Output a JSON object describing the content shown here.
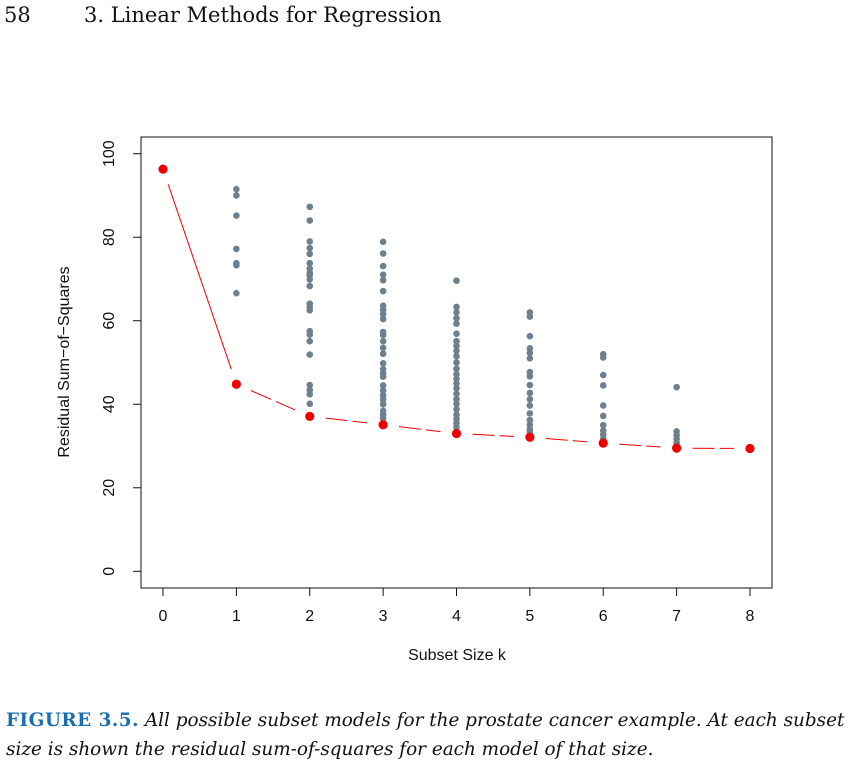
{
  "header": {
    "page_number": "58",
    "chapter_title": "3.  Linear Methods for Regression"
  },
  "chart_data": {
    "type": "scatter",
    "xlabel": "Subset Size k",
    "ylabel": "Residual Sum−of−Squares",
    "xlim": [
      -0.3,
      8.3
    ],
    "ylim": [
      -4,
      104
    ],
    "xticks": [
      "0",
      "1",
      "2",
      "3",
      "4",
      "5",
      "6",
      "7",
      "8"
    ],
    "yticks": [
      "0",
      "20",
      "40",
      "60",
      "80",
      "100"
    ],
    "grid": false,
    "colors": {
      "all_models": "#6e7f8d",
      "best_subset": "#ee0000",
      "curve": "#ee0000"
    },
    "series": [
      {
        "points": [
          [
            1,
            91.5
          ],
          [
            1,
            90.0
          ],
          [
            1,
            85.2
          ],
          [
            1,
            77.2
          ],
          [
            1,
            73.8
          ],
          [
            1,
            73.3
          ],
          [
            1,
            66.6
          ],
          [
            2,
            87.3
          ],
          [
            2,
            84.0
          ],
          [
            2,
            79.0
          ],
          [
            2,
            77.4
          ],
          [
            2,
            76.0
          ],
          [
            2,
            73.8
          ],
          [
            2,
            72.5
          ],
          [
            2,
            71.5
          ],
          [
            2,
            70.9
          ],
          [
            2,
            69.9
          ],
          [
            2,
            68.3
          ],
          [
            2,
            64.1
          ],
          [
            2,
            63.3
          ],
          [
            2,
            62.5
          ],
          [
            2,
            57.5
          ],
          [
            2,
            56.7
          ],
          [
            2,
            55.1
          ],
          [
            2,
            51.9
          ],
          [
            2,
            44.6
          ],
          [
            2,
            43.4
          ],
          [
            2,
            42.4
          ],
          [
            2,
            40.1
          ],
          [
            3,
            78.9
          ],
          [
            3,
            76.1
          ],
          [
            3,
            73.1
          ],
          [
            3,
            71.0
          ],
          [
            3,
            69.7
          ],
          [
            3,
            67.1
          ],
          [
            3,
            63.6
          ],
          [
            3,
            62.6
          ],
          [
            3,
            61.6
          ],
          [
            3,
            60.4
          ],
          [
            3,
            57.3
          ],
          [
            3,
            56.6
          ],
          [
            3,
            55.1
          ],
          [
            3,
            53.5
          ],
          [
            3,
            52.1
          ],
          [
            3,
            49.8
          ],
          [
            3,
            48.4
          ],
          [
            3,
            47.4
          ],
          [
            3,
            46.6
          ],
          [
            3,
            44.5
          ],
          [
            3,
            43.3
          ],
          [
            3,
            42.1
          ],
          [
            3,
            41.1
          ],
          [
            3,
            40.0
          ],
          [
            3,
            38.4
          ],
          [
            3,
            37.5
          ],
          [
            3,
            36.6
          ],
          [
            4,
            69.6
          ],
          [
            4,
            63.3
          ],
          [
            4,
            62.0
          ],
          [
            4,
            60.6
          ],
          [
            4,
            59.3
          ],
          [
            4,
            56.9
          ],
          [
            4,
            55.1
          ],
          [
            4,
            54.0
          ],
          [
            4,
            52.8
          ],
          [
            4,
            51.5
          ],
          [
            4,
            50.0
          ],
          [
            4,
            48.5
          ],
          [
            4,
            47.2
          ],
          [
            4,
            46.1
          ],
          [
            4,
            45.0
          ],
          [
            4,
            43.8
          ],
          [
            4,
            42.5
          ],
          [
            4,
            41.2
          ],
          [
            4,
            40.1
          ],
          [
            4,
            38.8
          ],
          [
            4,
            37.5
          ],
          [
            4,
            36.5
          ],
          [
            4,
            35.5
          ],
          [
            4,
            34.5
          ],
          [
            5,
            62.0
          ],
          [
            5,
            61.0
          ],
          [
            5,
            56.3
          ],
          [
            5,
            53.4
          ],
          [
            5,
            52.3
          ],
          [
            5,
            51.0
          ],
          [
            5,
            47.7
          ],
          [
            5,
            46.7
          ],
          [
            5,
            44.6
          ],
          [
            5,
            42.7
          ],
          [
            5,
            41.2
          ],
          [
            5,
            39.7
          ],
          [
            5,
            37.8
          ],
          [
            5,
            36.2
          ],
          [
            5,
            35.1
          ],
          [
            5,
            34.0
          ],
          [
            5,
            33.3
          ],
          [
            6,
            52.0
          ],
          [
            6,
            51.2
          ],
          [
            6,
            47.0
          ],
          [
            6,
            44.5
          ],
          [
            6,
            39.7
          ],
          [
            6,
            37.2
          ],
          [
            6,
            35.0
          ],
          [
            6,
            33.7
          ],
          [
            6,
            32.8
          ],
          [
            6,
            31.8
          ],
          [
            7,
            44.1
          ],
          [
            7,
            33.5
          ],
          [
            7,
            32.6
          ],
          [
            7,
            31.7
          ],
          [
            7,
            30.8
          ],
          [
            7,
            30.1
          ]
        ]
      },
      {
        "points": [
          [
            0,
            96.3
          ],
          [
            1,
            44.8
          ],
          [
            2,
            37.1
          ],
          [
            3,
            35.1
          ],
          [
            4,
            33.0
          ],
          [
            5,
            32.1
          ],
          [
            6,
            30.7
          ],
          [
            7,
            29.5
          ],
          [
            8,
            29.4
          ]
        ]
      }
    ]
  },
  "caption": {
    "label": "FIGURE 3.5.",
    "text": "All possible subset models for the prostate cancer example. At each subset size is shown the residual sum-of-squares for each model of that size."
  }
}
